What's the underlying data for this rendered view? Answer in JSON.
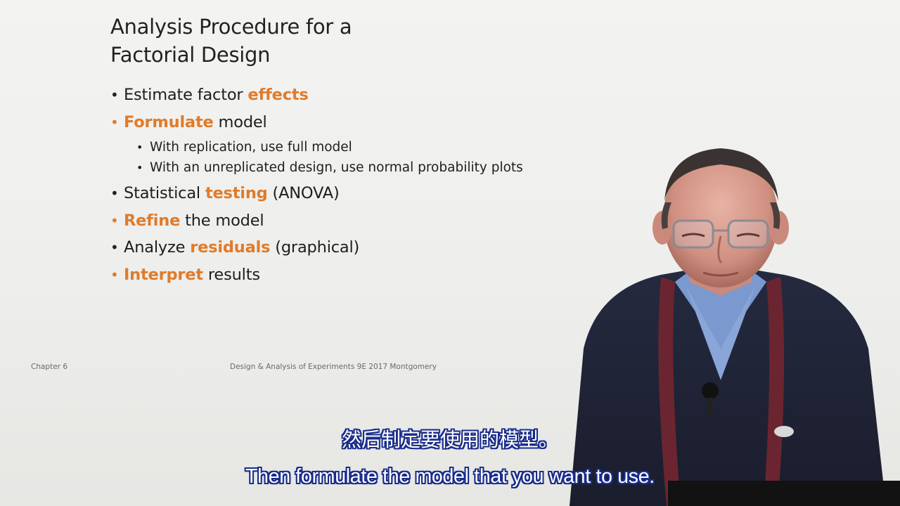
{
  "slide": {
    "title_line1": "Analysis Procedure for a",
    "title_line2": "Factorial Design",
    "bullets": [
      {
        "pre": "Estimate factor ",
        "hl": "effects",
        "post": "",
        "dot_color": "#222222"
      },
      {
        "pre": "",
        "hl": "Formulate",
        "post": " model",
        "dot_color": "#e07b2a"
      },
      {
        "pre": "Statistical ",
        "hl": "testing",
        "post": " (ANOVA)",
        "dot_color": "#222222"
      },
      {
        "pre": "",
        "hl": "Refine",
        "post": " the model",
        "dot_color": "#e07b2a"
      },
      {
        "pre": "Analyze ",
        "hl": "residuals",
        "post": " (graphical)",
        "dot_color": "#222222"
      },
      {
        "pre": "",
        "hl": "Interpret",
        "post": " results",
        "dot_color": "#e07b2a"
      }
    ],
    "sub_bullets": [
      "With replication, use full model",
      "With an unreplicated design, use normal probability plots"
    ],
    "footer_left": "Chapter 6",
    "footer_center": "Design & Analysis of Experiments 9E 2017 Montgomery",
    "accent_color": "#e07b2a"
  },
  "subtitles": {
    "zh": "然后制定要使用的模型。",
    "en": "Then formulate the model that you want to use."
  },
  "presenter": {
    "description_icon": "presenter-person-icon"
  }
}
